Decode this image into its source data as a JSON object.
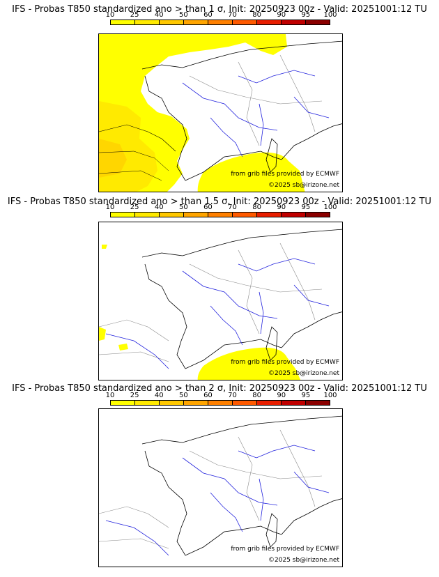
{
  "colorbar": {
    "ticks": [
      "10",
      "25",
      "40",
      "50",
      "60",
      "70",
      "80",
      "90",
      "95",
      "100"
    ],
    "colors": [
      "#ffff00",
      "#ffea00",
      "#ffc800",
      "#ffa500",
      "#ff8000",
      "#ff5a00",
      "#e81e00",
      "#c00000",
      "#8b0000"
    ]
  },
  "panels": [
    {
      "title": "IFS - Probas T850  standardized ano > than 1 σ, Init: 20250923 00z - Valid: 20251001:12 TU",
      "credit_line1": "from grib files provided by ECMWF",
      "credit_line2": "©2025 sb@irizone.net",
      "anomaly_level": "1 σ"
    },
    {
      "title": "IFS - Probas T850  standardized ano > than 1.5 σ, Init: 20250923 00z - Valid: 20251001:12 TU",
      "credit_line1": "from grib files provided by ECMWF",
      "credit_line2": "©2025 sb@irizone.net",
      "anomaly_level": "1.5 σ"
    },
    {
      "title": "IFS - Probas T850  standardized ano > than 2 σ, Init: 20250923 00z - Valid: 20251001:12 TU",
      "credit_line1": "from grib files provided by ECMWF",
      "credit_line2": "©2025 sb@irizone.net",
      "anomaly_level": "2 σ"
    }
  ]
}
